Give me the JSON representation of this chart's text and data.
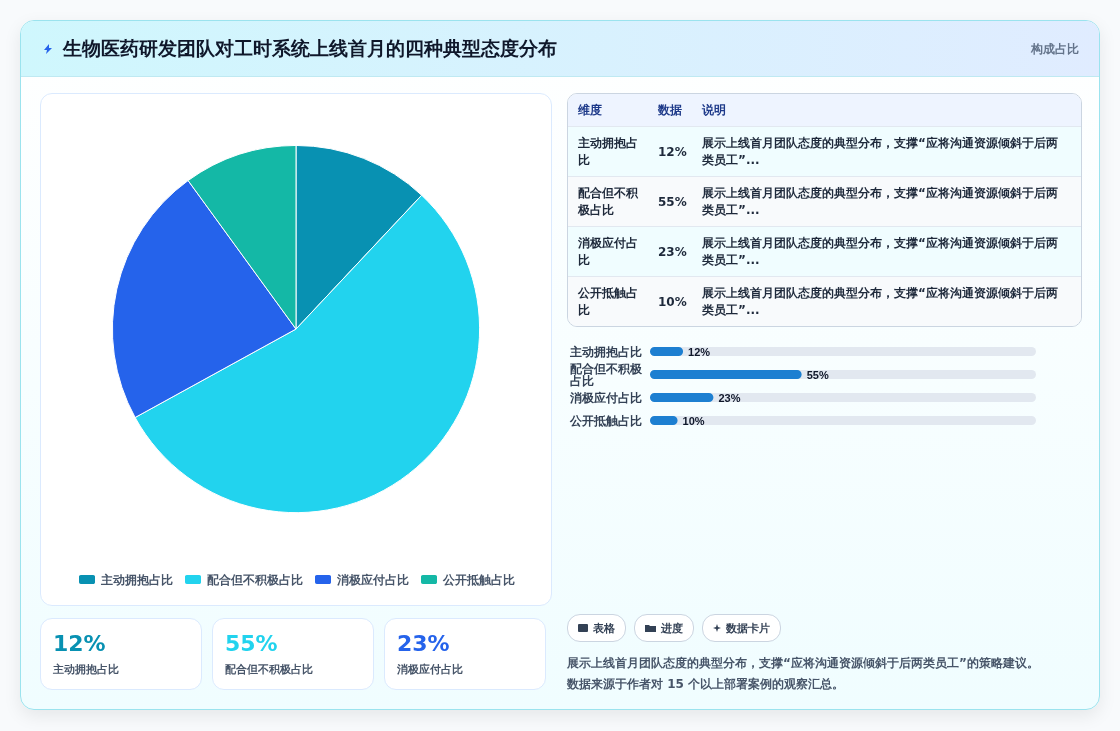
{
  "chart_data": [
    {
      "type": "other",
      "title": "生物医药研发团队对工时系统上线首月的四种典型态度分布",
      "subtitle": "构成占比"
    },
    {
      "type": "pie",
      "categories": [
        "主动拥抱占比",
        "配合但不积极占比",
        "消极应付占比",
        "公开抵触占比"
      ],
      "values": [
        12,
        55,
        23,
        10
      ],
      "colors": [
        "#0891b2",
        "#22d3ee",
        "#2563eb",
        "#14b8a6"
      ],
      "legend": "bottom"
    },
    {
      "type": "other",
      "annotations": [
        "维度",
        "数据",
        "说明",
        "主动拥抱占比",
        "12%",
        "展示上线首月团队态度的典型分布，支撑“应将沟通资源倾斜于后两类员工”...",
        "配合但不积极占比",
        "55%",
        "展示上线首月团队态度的典型分布，支撑“应将沟通资源倾斜于后两类员工”...",
        "消极应付占比",
        "23%",
        "展示上线首月团队态度的典型分布，支撑“应将沟通资源倾斜于后两类员工”...",
        "公开抵触占比",
        "10%",
        "展示上线首月团队态度的典型分布，支撑“应将沟通资源倾斜于后两类员工”..."
      ]
    },
    {
      "type": "bar",
      "orientation": "horizontal",
      "categories": [
        "主动拥抱占比",
        "配合但不积极占比",
        "消极应付占比",
        "公开抵触占比"
      ],
      "values": [
        12,
        55,
        23,
        10
      ],
      "value_labels": [
        "12%",
        "55%",
        "23%",
        "10%"
      ],
      "color": "#1d7fd1",
      "xlim": [
        0,
        140
      ],
      "tick_labels": "y"
    },
    {
      "type": "other",
      "annotations": [
        "12%",
        "主动拥抱占比",
        "55%",
        "配合但不积极占比",
        "23%",
        "消极应付占比"
      ],
      "colors": [
        "#0891b2",
        "#22d3ee",
        "#2563eb"
      ]
    },
    {
      "type": "other",
      "annotations": [
        "表格",
        "进度",
        "数据卡片"
      ]
    },
    {
      "type": "other",
      "annotations": [
        "展示上线首月团队态度的典型分布，支撑“应将沟通资源倾斜于后两类员工”的策略建议。",
        "数据来源于作者对 15 个以上部署案例的观察汇总。"
      ]
    }
  ]
}
